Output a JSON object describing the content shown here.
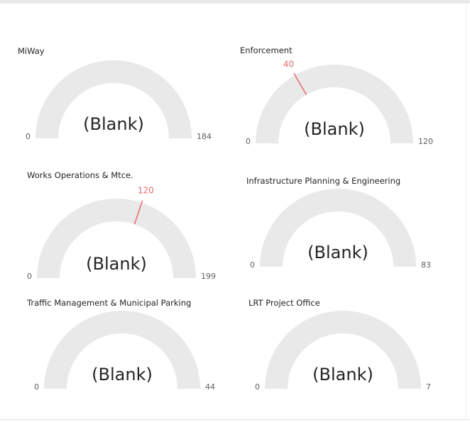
{
  "chart_data": [
    {
      "type": "gauge",
      "title": "MiWay",
      "value": null,
      "value_label": "(Blank)",
      "min": 0,
      "max": 184,
      "target": null
    },
    {
      "type": "gauge",
      "title": "Enforcement",
      "value": null,
      "value_label": "(Blank)",
      "min": 0,
      "max": 120,
      "target": 40
    },
    {
      "type": "gauge",
      "title": "Works Operations & Mtce.",
      "value": null,
      "value_label": "(Blank)",
      "min": 0,
      "max": 199,
      "target": 120
    },
    {
      "type": "gauge",
      "title": "Infrastructure Planning & Engineering",
      "value": null,
      "value_label": "(Blank)",
      "min": 0,
      "max": 83,
      "target": null
    },
    {
      "type": "gauge",
      "title": "Traffic Management & Municipal Parking",
      "value": null,
      "value_label": "(Blank)",
      "min": 0,
      "max": 44,
      "target": null
    },
    {
      "type": "gauge",
      "title": "LRT Project Office",
      "value": null,
      "value_label": "(Blank)",
      "min": 0,
      "max": 7,
      "target": null
    }
  ],
  "colors": {
    "track": "#e9e9e9",
    "target_line": "#e8686f",
    "target_label": "#e8686f",
    "text": "#252423",
    "axis_text": "#605e5c"
  }
}
